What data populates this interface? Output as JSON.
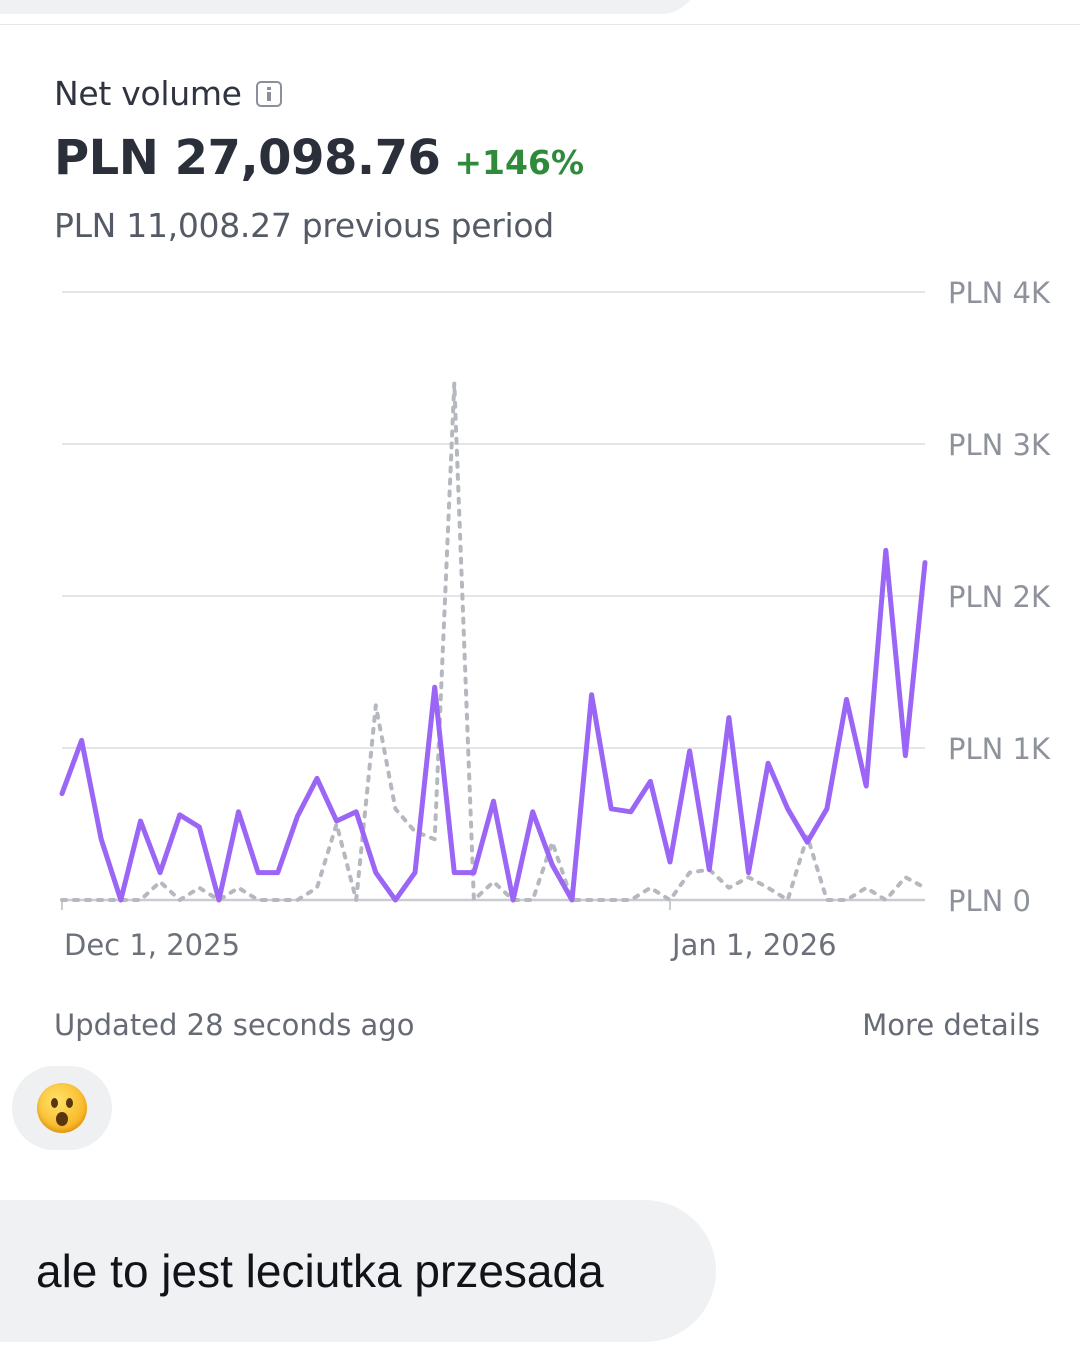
{
  "card": {
    "title": "Net volume",
    "info_icon": "info-icon",
    "amount": "PLN 27,098.76",
    "change": "+146%",
    "previous": "PLN 11,008.27 previous period",
    "updated": "Updated 28 seconds ago",
    "more_details": "More details"
  },
  "colors": {
    "current_line": "#9b66f5",
    "previous_line": "#b5b8be",
    "change_positive": "#2f8a3c"
  },
  "chart_data": {
    "type": "line",
    "y_ticks": [
      "PLN 0",
      "PLN 1K",
      "PLN 2K",
      "PLN 3K",
      "PLN 4K"
    ],
    "ylim": [
      0,
      4000
    ],
    "x_ticks": [
      {
        "label": "Dec 1, 2025",
        "index": 0
      },
      {
        "label": "Jan 1, 2026",
        "index": 31
      }
    ],
    "x_range": [
      0,
      44
    ],
    "grid": true,
    "series": [
      {
        "role": "current",
        "values": [
          700,
          1050,
          400,
          0,
          520,
          180,
          560,
          480,
          0,
          580,
          180,
          180,
          550,
          800,
          520,
          580,
          180,
          0,
          180,
          1400,
          180,
          180,
          650,
          0,
          580,
          230,
          0,
          1350,
          600,
          580,
          780,
          250,
          980,
          200,
          1200,
          180,
          900,
          600,
          380,
          600,
          1320,
          750,
          2300,
          950,
          2220
        ]
      },
      {
        "role": "previous",
        "values": [
          0,
          0,
          0,
          0,
          0,
          120,
          0,
          80,
          0,
          80,
          0,
          0,
          0,
          80,
          500,
          0,
          1280,
          600,
          450,
          400,
          3400,
          0,
          120,
          0,
          0,
          380,
          0,
          0,
          0,
          0,
          80,
          0,
          180,
          200,
          80,
          150,
          80,
          0,
          420,
          0,
          0,
          80,
          0,
          150,
          80
        ]
      }
    ]
  },
  "reaction": {
    "emoji": "hushed-face-emoji"
  },
  "message": {
    "text": "ale to jest leciutka przesada"
  }
}
